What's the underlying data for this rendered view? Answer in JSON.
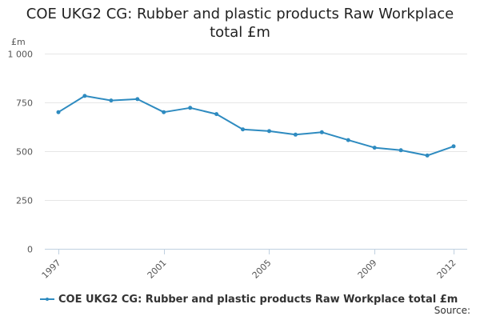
{
  "title_lines": [
    "COE UKG2 CG: Rubber and plastic products Raw Workplace",
    "total £m"
  ],
  "source_label": "Source:",
  "colors": {
    "series": "#2e8bc0",
    "grid": "#e6e6e6",
    "axis": "#c0d0e0",
    "text": "#555555"
  },
  "chart_data": {
    "type": "line",
    "title": "COE UKG2 CG: Rubber and plastic products Raw Workplace total £m",
    "ylabel": "£m",
    "ylim": [
      0,
      1000
    ],
    "yticks": [
      0,
      250,
      500,
      750,
      1000
    ],
    "ytick_labels": [
      "0",
      "250",
      "500",
      "750",
      "1 000"
    ],
    "xlim": [
      1997,
      2012
    ],
    "xticks": [
      1997,
      2001,
      2005,
      2009,
      2012
    ],
    "xtick_labels": [
      "1997",
      "2001",
      "2005",
      "2009",
      "2012"
    ],
    "grid": true,
    "legend": "bottom",
    "series": [
      {
        "name": "COE UKG2 CG: Rubber and plastic products Raw Workplace total £m",
        "x": [
          1997,
          1998,
          1999,
          2000,
          2001,
          2002,
          2003,
          2004,
          2005,
          2006,
          2007,
          2008,
          2009,
          2010,
          2011,
          2012
        ],
        "values": [
          700,
          783,
          760,
          767,
          700,
          722,
          690,
          612,
          603,
          585,
          597,
          557,
          518,
          505,
          478,
          525
        ]
      }
    ]
  }
}
